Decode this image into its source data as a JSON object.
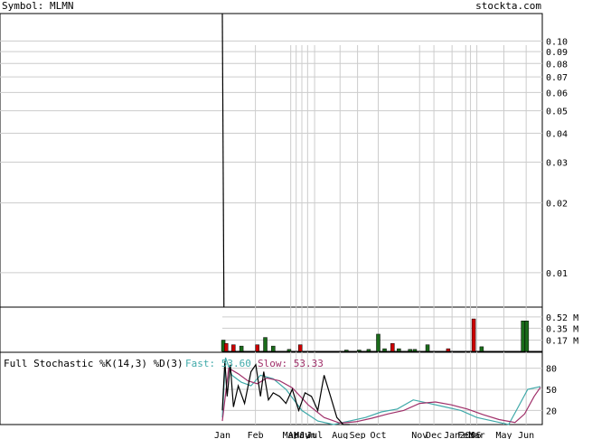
{
  "header": {
    "symbol_label": "Symbol: MLMN",
    "site": "stockta.com"
  },
  "colors": {
    "up": "#1a6b1a",
    "down": "#cc0000",
    "fast": "#3fa9a9",
    "slow": "#a0306a",
    "grid": "#cccccc"
  },
  "chart_data": [
    {
      "type": "line",
      "name": "price",
      "scale": "log",
      "ylim": [
        0.0071,
        0.105
      ],
      "y_ticks": [
        "0.10",
        "0.09",
        "0.08",
        "0.07",
        "0.06",
        "0.05",
        "0.04",
        "0.03",
        "0.02",
        "0.01"
      ],
      "y_tick_values": [
        0.1,
        0.09,
        0.08,
        0.07,
        0.06,
        0.05,
        0.04,
        0.03,
        0.02,
        0.01
      ],
      "x_labels": [
        "Jan",
        "Feb",
        "Mar",
        "Apr",
        "May",
        "Jun",
        "Jul",
        "Aug",
        "Sep",
        "Oct",
        "Nov",
        "Dec",
        "Jan",
        "Feb",
        "2006",
        "Mar",
        "May",
        "Jun"
      ],
      "x_label_pos": [
        0,
        0.104,
        0.215,
        0.232,
        0.25,
        0.268,
        0.29,
        0.37,
        0.425,
        0.49,
        0.62,
        0.665,
        0.722,
        0.765,
        0.78,
        0.8,
        0.885,
        0.955
      ],
      "price_line": {
        "x": [
          0,
          0.005
        ],
        "y": [
          0.105,
          0.0071
        ]
      }
    },
    {
      "type": "bar",
      "name": "volume",
      "y_ticks": [
        "0.52 M",
        "0.35 M",
        "0.17 M"
      ],
      "y_tick_values": [
        0.52,
        0.35,
        0.17
      ],
      "ylim": [
        0,
        0.6
      ],
      "bars": [
        {
          "x": 0.003,
          "v": 0.17,
          "c": "up"
        },
        {
          "x": 0.012,
          "v": 0.12,
          "c": "down"
        },
        {
          "x": 0.035,
          "v": 0.1,
          "c": "down"
        },
        {
          "x": 0.06,
          "v": 0.08,
          "c": "up"
        },
        {
          "x": 0.11,
          "v": 0.1,
          "c": "down"
        },
        {
          "x": 0.135,
          "v": 0.21,
          "c": "up"
        },
        {
          "x": 0.16,
          "v": 0.08,
          "c": "up"
        },
        {
          "x": 0.21,
          "v": 0.03,
          "c": "up"
        },
        {
          "x": 0.245,
          "v": 0.1,
          "c": "down"
        },
        {
          "x": 0.39,
          "v": 0.02,
          "c": "up"
        },
        {
          "x": 0.43,
          "v": 0.02,
          "c": "up"
        },
        {
          "x": 0.46,
          "v": 0.03,
          "c": "up"
        },
        {
          "x": 0.49,
          "v": 0.26,
          "c": "up"
        },
        {
          "x": 0.51,
          "v": 0.04,
          "c": "up"
        },
        {
          "x": 0.535,
          "v": 0.12,
          "c": "down"
        },
        {
          "x": 0.555,
          "v": 0.04,
          "c": "up"
        },
        {
          "x": 0.59,
          "v": 0.03,
          "c": "up"
        },
        {
          "x": 0.605,
          "v": 0.03,
          "c": "up"
        },
        {
          "x": 0.645,
          "v": 0.1,
          "c": "up"
        },
        {
          "x": 0.71,
          "v": 0.04,
          "c": "down"
        },
        {
          "x": 0.79,
          "v": 0.49,
          "c": "down"
        },
        {
          "x": 0.815,
          "v": 0.07,
          "c": "up"
        },
        {
          "x": 0.945,
          "v": 0.46,
          "c": "up"
        },
        {
          "x": 0.957,
          "v": 0.46,
          "c": "up"
        }
      ]
    },
    {
      "type": "line",
      "name": "stochastic",
      "title": "Full Stochastic %K(14,3) %D(3)",
      "fast_label": "Fast: 53.60",
      "slow_label": "Slow: 53.33",
      "ylim": [
        0,
        100
      ],
      "y_ticks": [
        "80",
        "50",
        "20"
      ],
      "y_tick_values": [
        80,
        50,
        20
      ],
      "series": [
        {
          "name": "Fast",
          "color": "fast",
          "x": [
            0,
            0.01,
            0.03,
            0.06,
            0.09,
            0.12,
            0.16,
            0.2,
            0.25,
            0.3,
            0.35,
            0.4,
            0.45,
            0.5,
            0.55,
            0.6,
            0.65,
            0.7,
            0.75,
            0.8,
            0.85,
            0.9,
            0.93,
            0.96,
            1.0
          ],
          "y": [
            10,
            95,
            70,
            60,
            55,
            70,
            65,
            50,
            20,
            5,
            0,
            5,
            10,
            18,
            22,
            35,
            30,
            25,
            20,
            10,
            5,
            0,
            25,
            50,
            54
          ]
        },
        {
          "name": "Slow",
          "color": "slow",
          "x": [
            0,
            0.02,
            0.05,
            0.08,
            0.11,
            0.14,
            0.18,
            0.22,
            0.27,
            0.32,
            0.37,
            0.42,
            0.47,
            0.52,
            0.57,
            0.62,
            0.67,
            0.72,
            0.77,
            0.82,
            0.87,
            0.92,
            0.95,
            0.98,
            1.0
          ],
          "y": [
            5,
            80,
            72,
            62,
            58,
            66,
            62,
            52,
            28,
            10,
            2,
            4,
            9,
            15,
            20,
            30,
            32,
            28,
            22,
            14,
            7,
            3,
            15,
            40,
            53
          ]
        },
        {
          "name": "K",
          "color": "black",
          "x": [
            0,
            0.008,
            0.015,
            0.025,
            0.035,
            0.05,
            0.07,
            0.09,
            0.105,
            0.12,
            0.13,
            0.145,
            0.16,
            0.18,
            0.2,
            0.22,
            0.24,
            0.26,
            0.28,
            0.3,
            0.32,
            0.34,
            0.36,
            0.38,
            0.4
          ],
          "y": [
            20,
            90,
            40,
            85,
            25,
            55,
            30,
            75,
            85,
            40,
            75,
            35,
            45,
            40,
            30,
            50,
            20,
            45,
            40,
            20,
            70,
            40,
            10,
            0,
            0
          ]
        }
      ]
    }
  ]
}
